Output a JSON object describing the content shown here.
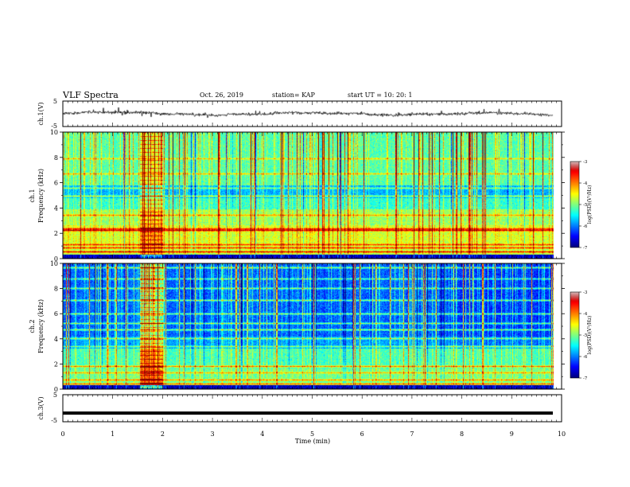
{
  "header": {
    "title": "VLF Spectra",
    "date": "Oct. 26, 2019",
    "station": "station= KAP",
    "start": "start  UT =   10: 20: 1"
  },
  "chart_data": [
    {
      "type": "line",
      "name": "ch1-waveform",
      "ylabel": "ch.1(V)",
      "ylim": [
        -5,
        5
      ],
      "yticks": [
        "5",
        "-5"
      ],
      "xlim": [
        0,
        10
      ],
      "signal_description_range_v": [
        -2.5,
        2.5
      ]
    },
    {
      "type": "heatmap",
      "name": "ch1-spectrogram",
      "ylabel_channel": "ch.1",
      "ylabel": "Frequency  (kHz)",
      "ylim": [
        0,
        10
      ],
      "yticks": [
        "0",
        "2",
        "4",
        "6",
        "8",
        "10"
      ],
      "xlim": [
        0,
        10
      ],
      "colorbar": {
        "label": "log(PSD)(V²/Hz)",
        "range": [
          -7,
          -3
        ],
        "ticks": [
          "-3",
          "-4",
          "-5",
          "-6",
          "-7"
        ]
      }
    },
    {
      "type": "heatmap",
      "name": "ch2-spectrogram",
      "ylabel_channel": "ch.2",
      "ylabel": "Frequency  (kHz)",
      "ylim": [
        0,
        10
      ],
      "yticks": [
        "0",
        "2",
        "4",
        "6",
        "8",
        "10"
      ],
      "xlim": [
        0,
        10
      ],
      "colorbar": {
        "label": "log(PSD)(V²/Hz)",
        "range": [
          -7,
          -3
        ],
        "ticks": [
          "-3",
          "-4",
          "-5",
          "-6",
          "-7"
        ]
      }
    },
    {
      "type": "line",
      "name": "ch3-waveform",
      "ylabel": "ch.3(V)",
      "ylim": [
        -5,
        5
      ],
      "yticks": [
        "5",
        "-5"
      ],
      "xlim": [
        0,
        10
      ],
      "constant_value_v": -1.8
    }
  ],
  "xaxis": {
    "label": "Time  (min)",
    "ticks": [
      "0",
      "1",
      "2",
      "3",
      "4",
      "5",
      "6",
      "7",
      "8",
      "9",
      "10"
    ],
    "data_end_min": 9.82
  }
}
